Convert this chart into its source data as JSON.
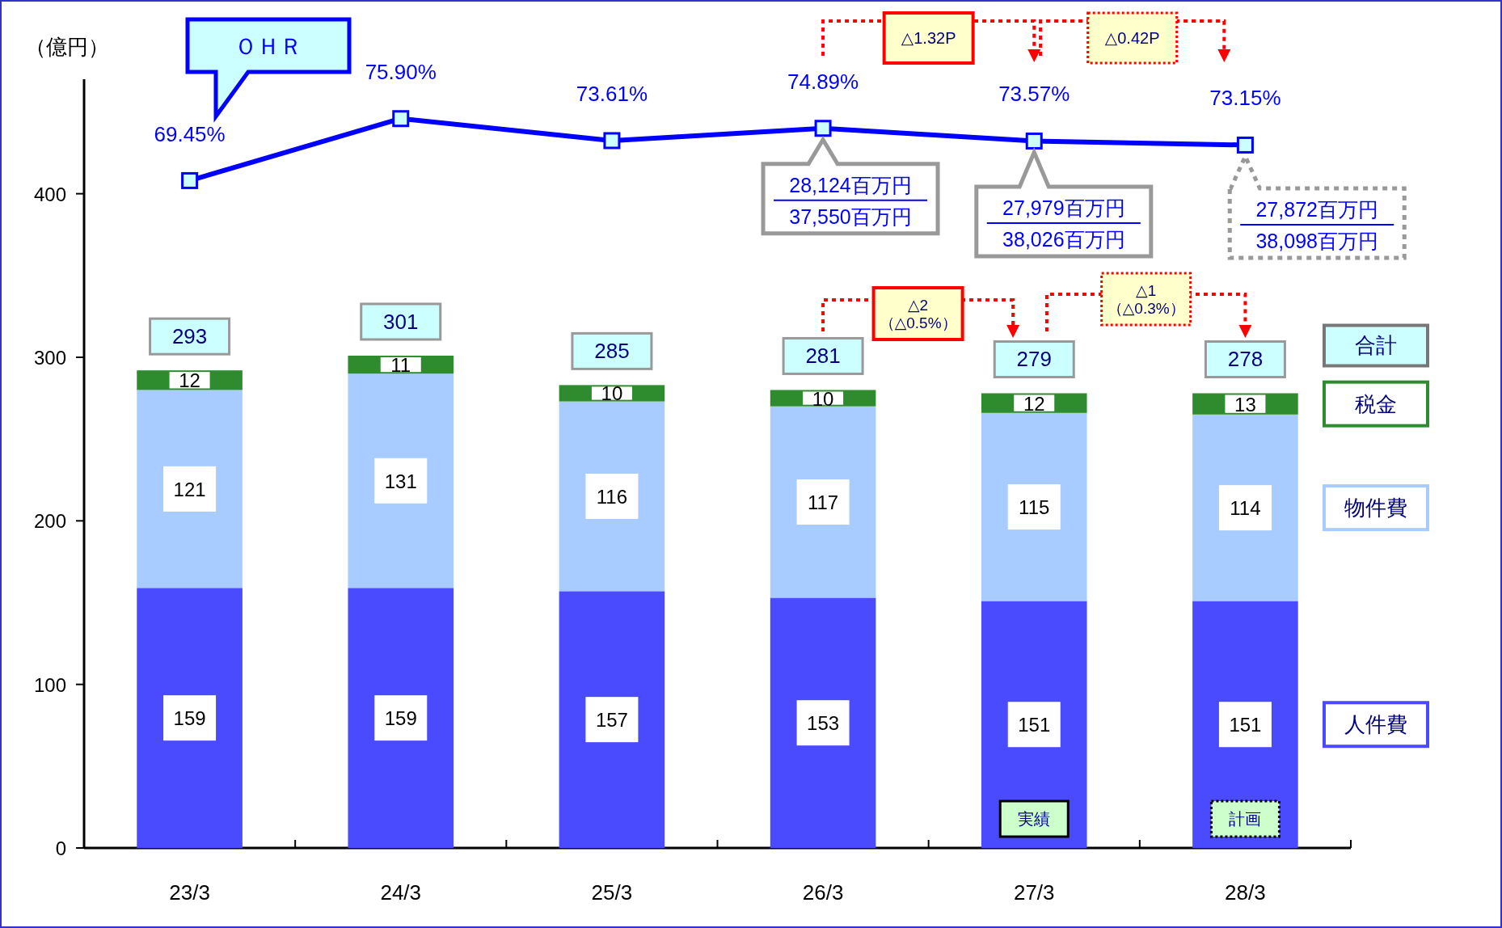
{
  "chart_data": {
    "type": "bar",
    "stacked": true,
    "ylabel": "（億円）",
    "categories": [
      "23/3",
      "24/3",
      "25/3",
      "26/3",
      "27/3",
      "28/3"
    ],
    "ylim": [
      0,
      470
    ],
    "yticks": [
      0,
      100,
      200,
      300,
      400
    ],
    "y2lim": [
      0,
      80
    ],
    "data_labels": true,
    "marker": "square",
    "totals": [
      "293",
      "301",
      "285",
      "281",
      "279",
      "278"
    ],
    "series": [
      {
        "name": "人件費",
        "color": "#4a4aff",
        "values": [
          159,
          159,
          157,
          153,
          151,
          151
        ]
      },
      {
        "name": "物件費",
        "color": "#a8ccff",
        "values": [
          121,
          131,
          116,
          117,
          115,
          114
        ]
      },
      {
        "name": "税金",
        "color": "#2e8b2e",
        "values": [
          12,
          11,
          10,
          10,
          12,
          13
        ]
      },
      {
        "name": "ＯＨＲ",
        "type": "line",
        "axis": "y2",
        "color": "#0000ff",
        "values": [
          69.45,
          75.9,
          73.61,
          74.89,
          73.57,
          73.15
        ],
        "value_labels": [
          "69.45%",
          "75.90%",
          "73.61%",
          "74.89%",
          "73.57%",
          "73.15%"
        ]
      }
    ],
    "annotations": [
      "28,124百万円\n37,550百万円",
      "27,979百万円\n38,026百万円",
      "27,872百万円\n38,098百万円",
      "△1.32P",
      "△0.42P",
      "△2\n（△0.5%）",
      "△1\n（△0.3%）",
      "実績",
      "計画",
      "合計"
    ]
  }
}
